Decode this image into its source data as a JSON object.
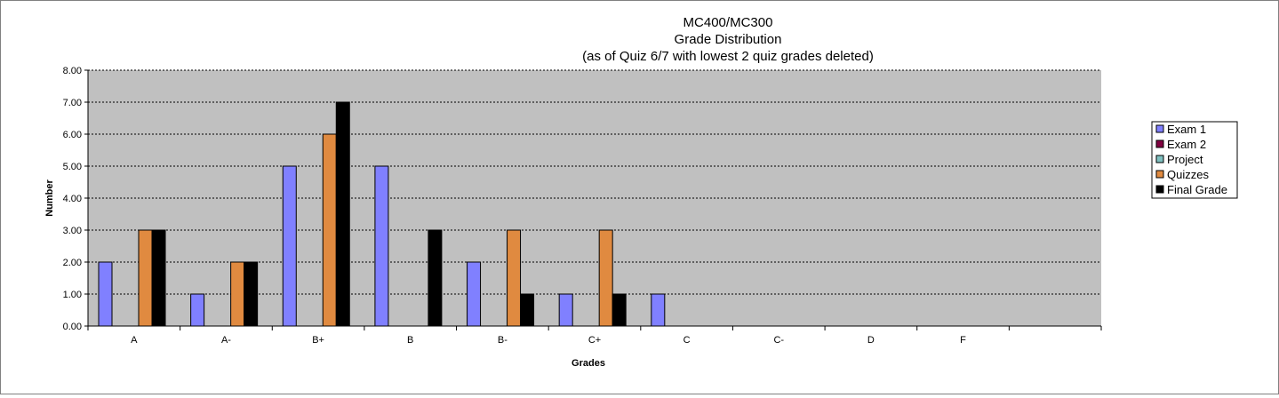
{
  "chart_data": {
    "type": "bar",
    "title": [
      "MC400/MC300",
      "Grade Distribution",
      "(as of Quiz 6/7 with lowest 2 quiz grades deleted)"
    ],
    "xlabel": "Grades",
    "ylabel": "Number",
    "categories": [
      "A",
      "A-",
      "B+",
      "B",
      "B-",
      "C+",
      "C",
      "C-",
      "D",
      "F"
    ],
    "y_tick_labels": [
      "0.00",
      "1.00",
      "2.00",
      "3.00",
      "4.00",
      "5.00",
      "6.00",
      "7.00",
      "8.00"
    ],
    "ylim": [
      0,
      8
    ],
    "grid": true,
    "legend_position": "right",
    "series": [
      {
        "name": "Exam 1",
        "color": "#8080ff",
        "values": [
          2,
          1,
          5,
          5,
          2,
          1,
          1,
          0,
          0,
          0
        ]
      },
      {
        "name": "Exam 2",
        "color": "#800040",
        "values": [
          0,
          0,
          0,
          0,
          0,
          0,
          0,
          0,
          0,
          0
        ]
      },
      {
        "name": "Project",
        "color": "#80c0c0",
        "values": [
          0,
          0,
          0,
          0,
          0,
          0,
          0,
          0,
          0,
          0
        ]
      },
      {
        "name": "Quizzes",
        "color": "#e08a40",
        "values": [
          3,
          2,
          6,
          0,
          3,
          3,
          0,
          0,
          0,
          0
        ]
      },
      {
        "name": "Final Grade",
        "color": "#000000",
        "values": [
          3,
          2,
          7,
          3,
          1,
          1,
          0,
          0,
          0,
          0
        ]
      }
    ]
  }
}
